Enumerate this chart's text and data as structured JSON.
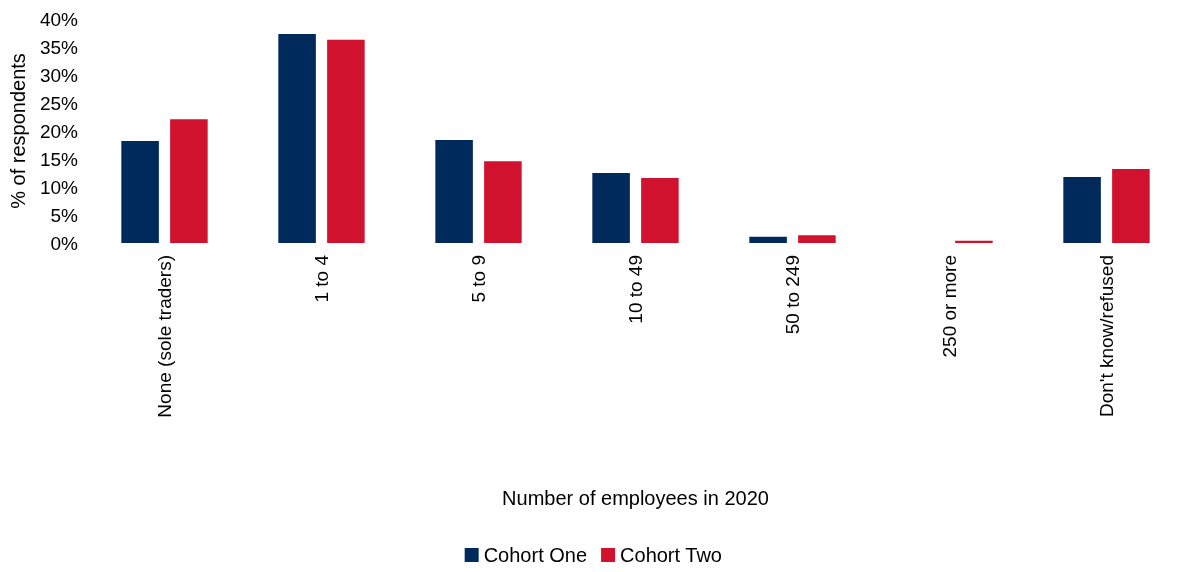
{
  "chart_data": {
    "type": "bar",
    "xlabel": "Number of employees in 2020",
    "ylabel": "% of respondents",
    "categories": [
      "None (sole traders)",
      "1 to 4",
      "5 to 9",
      "10 to 49",
      "50 to 249",
      "250 or more",
      "Don't know/refused"
    ],
    "series": [
      {
        "name": "Cohort One",
        "color": "#002a5c",
        "values": [
          18.2,
          37.3,
          18.4,
          12.5,
          1.1,
          0,
          11.8
        ]
      },
      {
        "name": "Cohort Two",
        "color": "#d0122f",
        "values": [
          22.1,
          36.3,
          14.6,
          11.6,
          1.4,
          0.4,
          13.2
        ]
      }
    ],
    "ylim": [
      0,
      40
    ],
    "yticks": [
      {
        "value": 0,
        "label": "0%"
      },
      {
        "value": 5,
        "label": "5%"
      },
      {
        "value": 10,
        "label": "10%"
      },
      {
        "value": 15,
        "label": "15%"
      },
      {
        "value": 20,
        "label": "20%"
      },
      {
        "value": 25,
        "label": "25%"
      },
      {
        "value": 30,
        "label": "30%"
      },
      {
        "value": 35,
        "label": "35%"
      },
      {
        "value": 40,
        "label": "40%"
      }
    ],
    "grid": false,
    "legend": "bottom"
  }
}
